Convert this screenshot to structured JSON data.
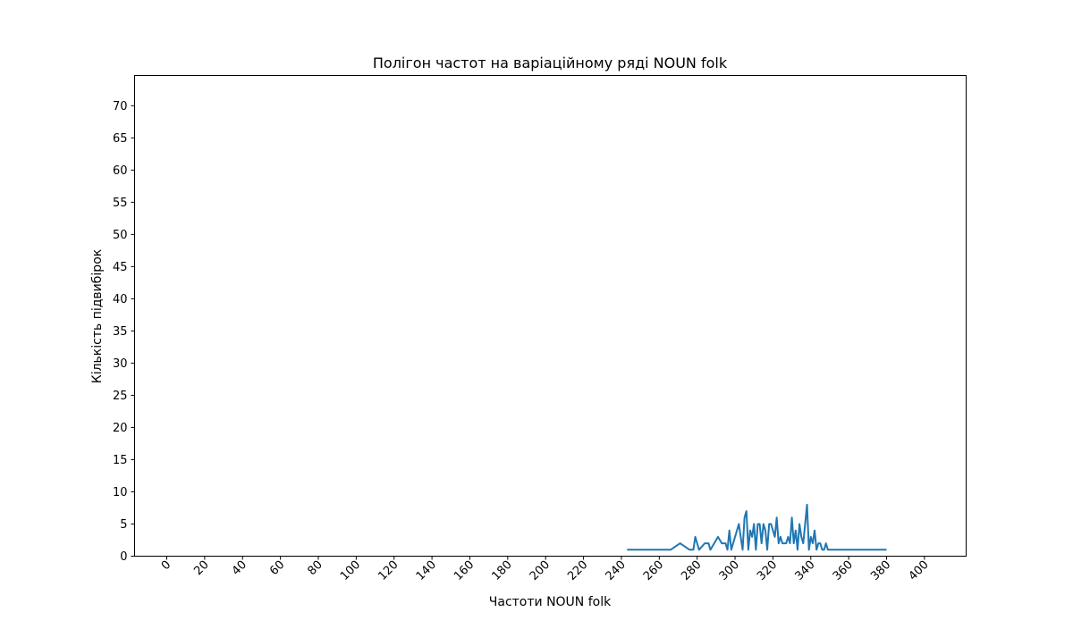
{
  "chart_data": {
    "type": "line",
    "title": "Полігон частот на варіаційному ряді NOUN folk",
    "xlabel": "Частоти NOUN folk",
    "ylabel": "Кількість підвибірок",
    "xlim": [
      -17,
      422
    ],
    "ylim": [
      0,
      74.7
    ],
    "x_ticks": [
      0,
      20,
      40,
      60,
      80,
      100,
      120,
      140,
      160,
      180,
      200,
      220,
      240,
      260,
      280,
      300,
      320,
      340,
      360,
      380,
      400
    ],
    "y_ticks": [
      0,
      5,
      10,
      15,
      20,
      25,
      30,
      35,
      40,
      45,
      50,
      55,
      60,
      65,
      70
    ],
    "grid": false,
    "series_color": "#1f77b4",
    "series": [
      {
        "x": [
          243,
          266,
          271,
          276,
          278,
          279,
          281,
          284,
          286,
          287,
          289,
          291,
          293,
          294,
          295,
          296,
          297,
          298,
          300,
          302,
          304,
          305,
          306,
          307,
          308,
          309,
          310,
          311,
          312,
          313,
          314,
          315,
          316,
          317,
          318,
          319,
          320,
          321,
          322,
          323,
          324,
          325,
          326,
          327,
          328,
          329,
          330,
          331,
          332,
          333,
          334,
          335,
          336,
          337,
          338,
          339,
          340,
          341,
          342,
          343,
          344,
          345,
          346,
          347,
          348,
          349,
          350,
          380
        ],
        "y": [
          1,
          1,
          2,
          1,
          1,
          3,
          1,
          2,
          2,
          1,
          2,
          3,
          2,
          2,
          2,
          1,
          4,
          1,
          3,
          5,
          1,
          6,
          7,
          1,
          4,
          3,
          5,
          1,
          5,
          5,
          2,
          5,
          4,
          1,
          5,
          5,
          4,
          3,
          6,
          2,
          3,
          2,
          2,
          2,
          3,
          2,
          6,
          2,
          4,
          1,
          5,
          3,
          2,
          5,
          8,
          1,
          3,
          2,
          4,
          1,
          2,
          2,
          1,
          1,
          2,
          1,
          1,
          1
        ]
      }
    ]
  }
}
